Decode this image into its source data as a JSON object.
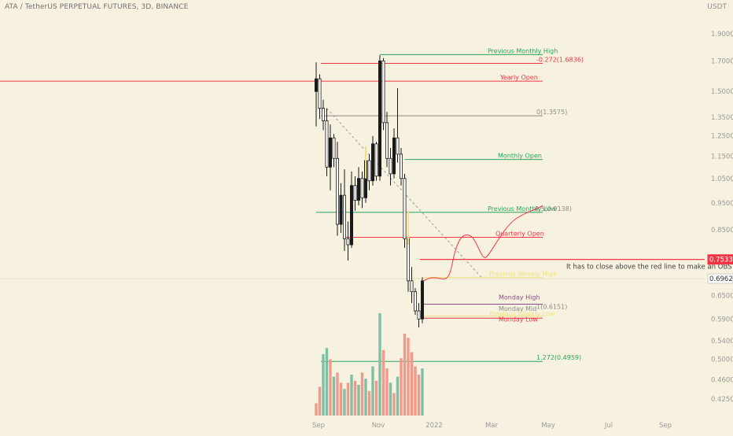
{
  "header": {
    "title": "ATA / TetherUS PERPETUAL FUTURES, 3D, BINANCE",
    "currency": "USDT"
  },
  "colors": {
    "background": "#f7f1df",
    "up": "#1a1a1a",
    "down": "#ffffff",
    "volume_up": "#7fbfa6",
    "volume_down": "#ef9a8a",
    "red": "#f23645",
    "green": "#26a65b",
    "gray": "#8a8a8a",
    "yellow": "#efe380",
    "purple": "#8a4a8a"
  },
  "chart_data": {
    "type": "candlestick",
    "title": "ATA / TetherUS PERPETUAL FUTURES, 3D, BINANCE",
    "xlabel": "",
    "ylabel": "",
    "scale": "log",
    "ylim": [
      0.4,
      2.05
    ],
    "x_ticks": [
      "Sep",
      "Nov",
      "2022",
      "Mar",
      "May",
      "Jul",
      "Sep"
    ],
    "y_ticks": [
      "1.9000",
      "1.7000",
      "1.5000",
      "1.3500",
      "1.2500",
      "1.1500",
      "1.0500",
      "0.9500",
      "0.8500",
      "0.7500",
      "0.6500",
      "0.5900",
      "0.5400",
      "0.5000",
      "0.4600",
      "0.4250"
    ],
    "price_labels": [
      {
        "text": "0.7533",
        "value": 0.7533,
        "style": "red"
      },
      {
        "text": "0.6962",
        "value": 0.6962,
        "style": "light"
      }
    ],
    "candles": [
      {
        "o": 1.5,
        "h": 1.69,
        "l": 1.3,
        "c": 1.58
      },
      {
        "o": 1.58,
        "h": 1.61,
        "l": 1.34,
        "c": 1.4
      },
      {
        "o": 1.4,
        "h": 1.45,
        "l": 1.28,
        "c": 1.33
      },
      {
        "o": 1.33,
        "h": 1.4,
        "l": 1.06,
        "c": 1.1
      },
      {
        "o": 1.1,
        "h": 1.31,
        "l": 1.0,
        "c": 1.24
      },
      {
        "o": 1.24,
        "h": 1.26,
        "l": 1.1,
        "c": 1.14
      },
      {
        "o": 1.14,
        "h": 1.22,
        "l": 0.83,
        "c": 0.87
      },
      {
        "o": 0.87,
        "h": 1.03,
        "l": 0.84,
        "c": 0.98
      },
      {
        "o": 0.98,
        "h": 1.09,
        "l": 0.78,
        "c": 0.82
      },
      {
        "o": 0.82,
        "h": 0.88,
        "l": 0.75,
        "c": 0.8
      },
      {
        "o": 0.8,
        "h": 1.08,
        "l": 0.79,
        "c": 1.02
      },
      {
        "o": 1.02,
        "h": 1.06,
        "l": 0.92,
        "c": 0.96
      },
      {
        "o": 0.96,
        "h": 1.1,
        "l": 0.94,
        "c": 1.05
      },
      {
        "o": 1.05,
        "h": 1.08,
        "l": 0.93,
        "c": 0.97
      },
      {
        "o": 0.97,
        "h": 1.18,
        "l": 0.95,
        "c": 1.13
      },
      {
        "o": 1.13,
        "h": 1.16,
        "l": 1.0,
        "c": 1.04
      },
      {
        "o": 1.04,
        "h": 1.25,
        "l": 1.02,
        "c": 1.21
      },
      {
        "o": 1.21,
        "h": 1.22,
        "l": 1.04,
        "c": 1.06
      },
      {
        "o": 1.06,
        "h": 1.74,
        "l": 1.04,
        "c": 1.7
      },
      {
        "o": 1.7,
        "h": 1.72,
        "l": 1.28,
        "c": 1.32
      },
      {
        "o": 1.32,
        "h": 1.38,
        "l": 1.1,
        "c": 1.14
      },
      {
        "o": 1.14,
        "h": 1.19,
        "l": 1.02,
        "c": 1.07
      },
      {
        "o": 1.07,
        "h": 1.29,
        "l": 1.05,
        "c": 1.24
      },
      {
        "o": 1.24,
        "h": 1.52,
        "l": 1.12,
        "c": 1.16
      },
      {
        "o": 1.16,
        "h": 1.19,
        "l": 1.02,
        "c": 1.05
      },
      {
        "o": 1.05,
        "h": 1.07,
        "l": 0.79,
        "c": 0.82
      },
      {
        "o": 0.82,
        "h": 0.85,
        "l": 0.66,
        "c": 0.69
      },
      {
        "o": 0.69,
        "h": 0.73,
        "l": 0.63,
        "c": 0.66
      },
      {
        "o": 0.66,
        "h": 0.67,
        "l": 0.6,
        "c": 0.61
      },
      {
        "o": 0.61,
        "h": 0.63,
        "l": 0.57,
        "c": 0.59
      },
      {
        "o": 0.59,
        "h": 0.7,
        "l": 0.58,
        "c": 0.69
      }
    ],
    "volume": [
      {
        "v": 0.12,
        "up": false
      },
      {
        "v": 0.28,
        "up": false
      },
      {
        "v": 0.6,
        "up": true
      },
      {
        "v": 0.66,
        "up": true
      },
      {
        "v": 0.55,
        "up": false
      },
      {
        "v": 0.38,
        "up": true
      },
      {
        "v": 0.42,
        "up": false
      },
      {
        "v": 0.32,
        "up": false
      },
      {
        "v": 0.26,
        "up": true
      },
      {
        "v": 0.32,
        "up": false
      },
      {
        "v": 0.4,
        "up": true
      },
      {
        "v": 0.34,
        "up": false
      },
      {
        "v": 0.3,
        "up": true
      },
      {
        "v": 0.42,
        "up": false
      },
      {
        "v": 0.36,
        "up": true
      },
      {
        "v": 0.24,
        "up": false
      },
      {
        "v": 0.48,
        "up": true
      },
      {
        "v": 0.34,
        "up": false
      },
      {
        "v": 1.0,
        "up": true
      },
      {
        "v": 0.64,
        "up": false
      },
      {
        "v": 0.46,
        "up": false
      },
      {
        "v": 0.32,
        "up": true
      },
      {
        "v": 0.22,
        "up": false
      },
      {
        "v": 0.38,
        "up": true
      },
      {
        "v": 0.56,
        "up": false
      },
      {
        "v": 0.8,
        "up": false
      },
      {
        "v": 0.76,
        "up": false
      },
      {
        "v": 0.62,
        "up": false
      },
      {
        "v": 0.48,
        "up": false
      },
      {
        "v": 0.4,
        "up": false
      },
      {
        "v": 0.46,
        "up": true
      }
    ],
    "levels": [
      {
        "label": "Previous Monthly High",
        "value": 1.745,
        "color": "#26a65b",
        "from": 18,
        "to": "far"
      },
      {
        "label": "-0.272(1.6836)",
        "value": 1.6836,
        "color": "#f23645",
        "from": 0,
        "to": "mid"
      },
      {
        "label": "Yearly Open",
        "value": 1.565,
        "color": "#f23645",
        "from": "edge",
        "to": "mid"
      },
      {
        "label": "0(1.3575)",
        "value": 1.3575,
        "color": "#8a8a8a",
        "from": 0,
        "to": "mid"
      },
      {
        "label": "Monthly Open",
        "value": 1.135,
        "color": "#26a65b",
        "from": 25,
        "to": "mid"
      },
      {
        "label": "Previous Monthly Low",
        "value": 0.9138,
        "color": "#26a65b",
        "from": 0,
        "to": "mid"
      },
      {
        "label": "0.5(0.9138)",
        "value": 0.9138,
        "color": "#8a8a8a",
        "from": 0,
        "to": "mid"
      },
      {
        "label": "Quarterly Open",
        "value": 0.825,
        "color": "#f23645",
        "from": 8,
        "to": "mid"
      },
      {
        "label": "Previous Weekly High",
        "value": 0.7,
        "color": "#efe380",
        "from": 30,
        "to": "mid"
      },
      {
        "label": "Monday High",
        "value": 0.627,
        "color": "#8a4a8a",
        "from": 30,
        "to": "mid"
      },
      {
        "label": "Monday Mid",
        "value": 0.612,
        "color": "#8a8a8a",
        "from": 30,
        "to": "mid"
      },
      {
        "label": "1(0.6151)",
        "value": 0.6151,
        "color": "#8a8a8a",
        "from": 0,
        "to": "mid"
      },
      {
        "label": "Previous Weekly Low",
        "value": 0.597,
        "color": "#efe380",
        "from": 30,
        "to": "mid"
      },
      {
        "label": "Monday Low",
        "value": 0.592,
        "color": "#f23645",
        "from": 30,
        "to": "mid"
      },
      {
        "label": "1.272(0.4959)",
        "value": 0.4959,
        "color": "#26a65b",
        "from": 0,
        "to": "mid"
      }
    ],
    "key_level": {
      "value": 0.7533,
      "color": "#f23645"
    },
    "annotation": "It has to close above the red line to make an OBS"
  }
}
